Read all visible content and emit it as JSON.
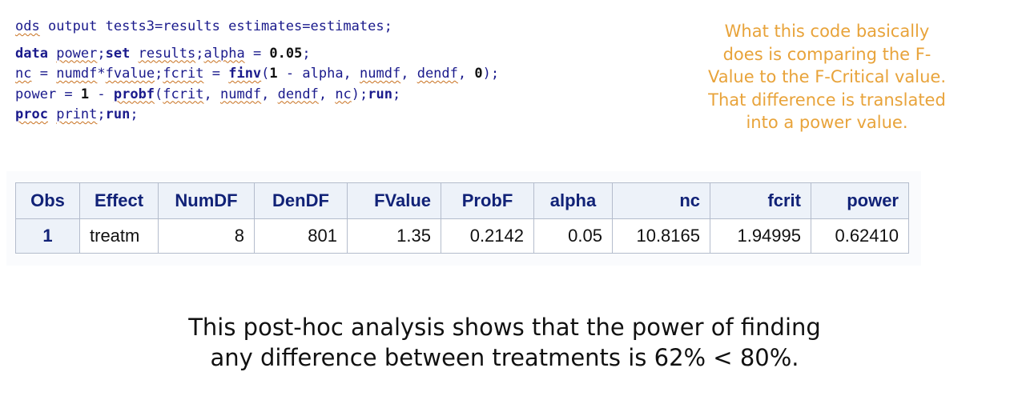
{
  "code": {
    "line1": {
      "p1": "ods",
      "p2": " output tests3=results estimates=estimates;"
    },
    "line2": {
      "p1": "data",
      "p2": " ",
      "p3": "power",
      "p4": ";",
      "p5": "set",
      "p6": " ",
      "p7": "results",
      "p8": ";",
      "p9": "alpha",
      "p10": " = ",
      "p11": "0.05",
      "p12": ";"
    },
    "line3": {
      "p1": "nc",
      "p2": " = ",
      "p3": "numdf",
      "p4": "*",
      "p5": "fvalue",
      "p6": ";",
      "p7": "fcrit",
      "p8": " = ",
      "p9": "finv",
      "p10": "(",
      "p11": "1",
      "p12": " - alpha, ",
      "p13": "numdf",
      "p14": ", ",
      "p15": "dendf",
      "p16": ", ",
      "p17": "0",
      "p18": ");"
    },
    "line4": {
      "p1": "power = ",
      "p2": "1",
      "p3": " - ",
      "p4": "probf",
      "p5": "(",
      "p6": "fcrit",
      "p7": ", ",
      "p8": "numdf",
      "p9": ", ",
      "p10": "dendf",
      "p11": ", ",
      "p12": "nc",
      "p13": ");",
      "p14": "run",
      "p15": ";"
    },
    "line5": {
      "p1": "proc",
      "p2": " ",
      "p3": "print",
      "p4": ";",
      "p5": "run",
      "p6": ";"
    }
  },
  "annotation": {
    "lines": [
      "What this code basically",
      "does is comparing the F-",
      "Value to the F-Critical value.",
      "That difference is translated",
      "into a power value."
    ],
    "color": "#e8a33a"
  },
  "results_table": {
    "headers": [
      "Obs",
      "Effect",
      "NumDF",
      "DenDF",
      "FValue",
      "ProbF",
      "alpha",
      "nc",
      "fcrit",
      "power"
    ],
    "rows": [
      [
        "1",
        "treatm",
        "8",
        "801",
        "1.35",
        "0.2142",
        "0.05",
        "10.8165",
        "1.94995",
        "0.62410"
      ]
    ],
    "header_color": "#112277",
    "header_bg": "#edf2f9"
  },
  "caption": {
    "line1": "This post-hoc analysis shows that the power of finding",
    "line2": "any difference between treatments is 62% < 80%."
  }
}
